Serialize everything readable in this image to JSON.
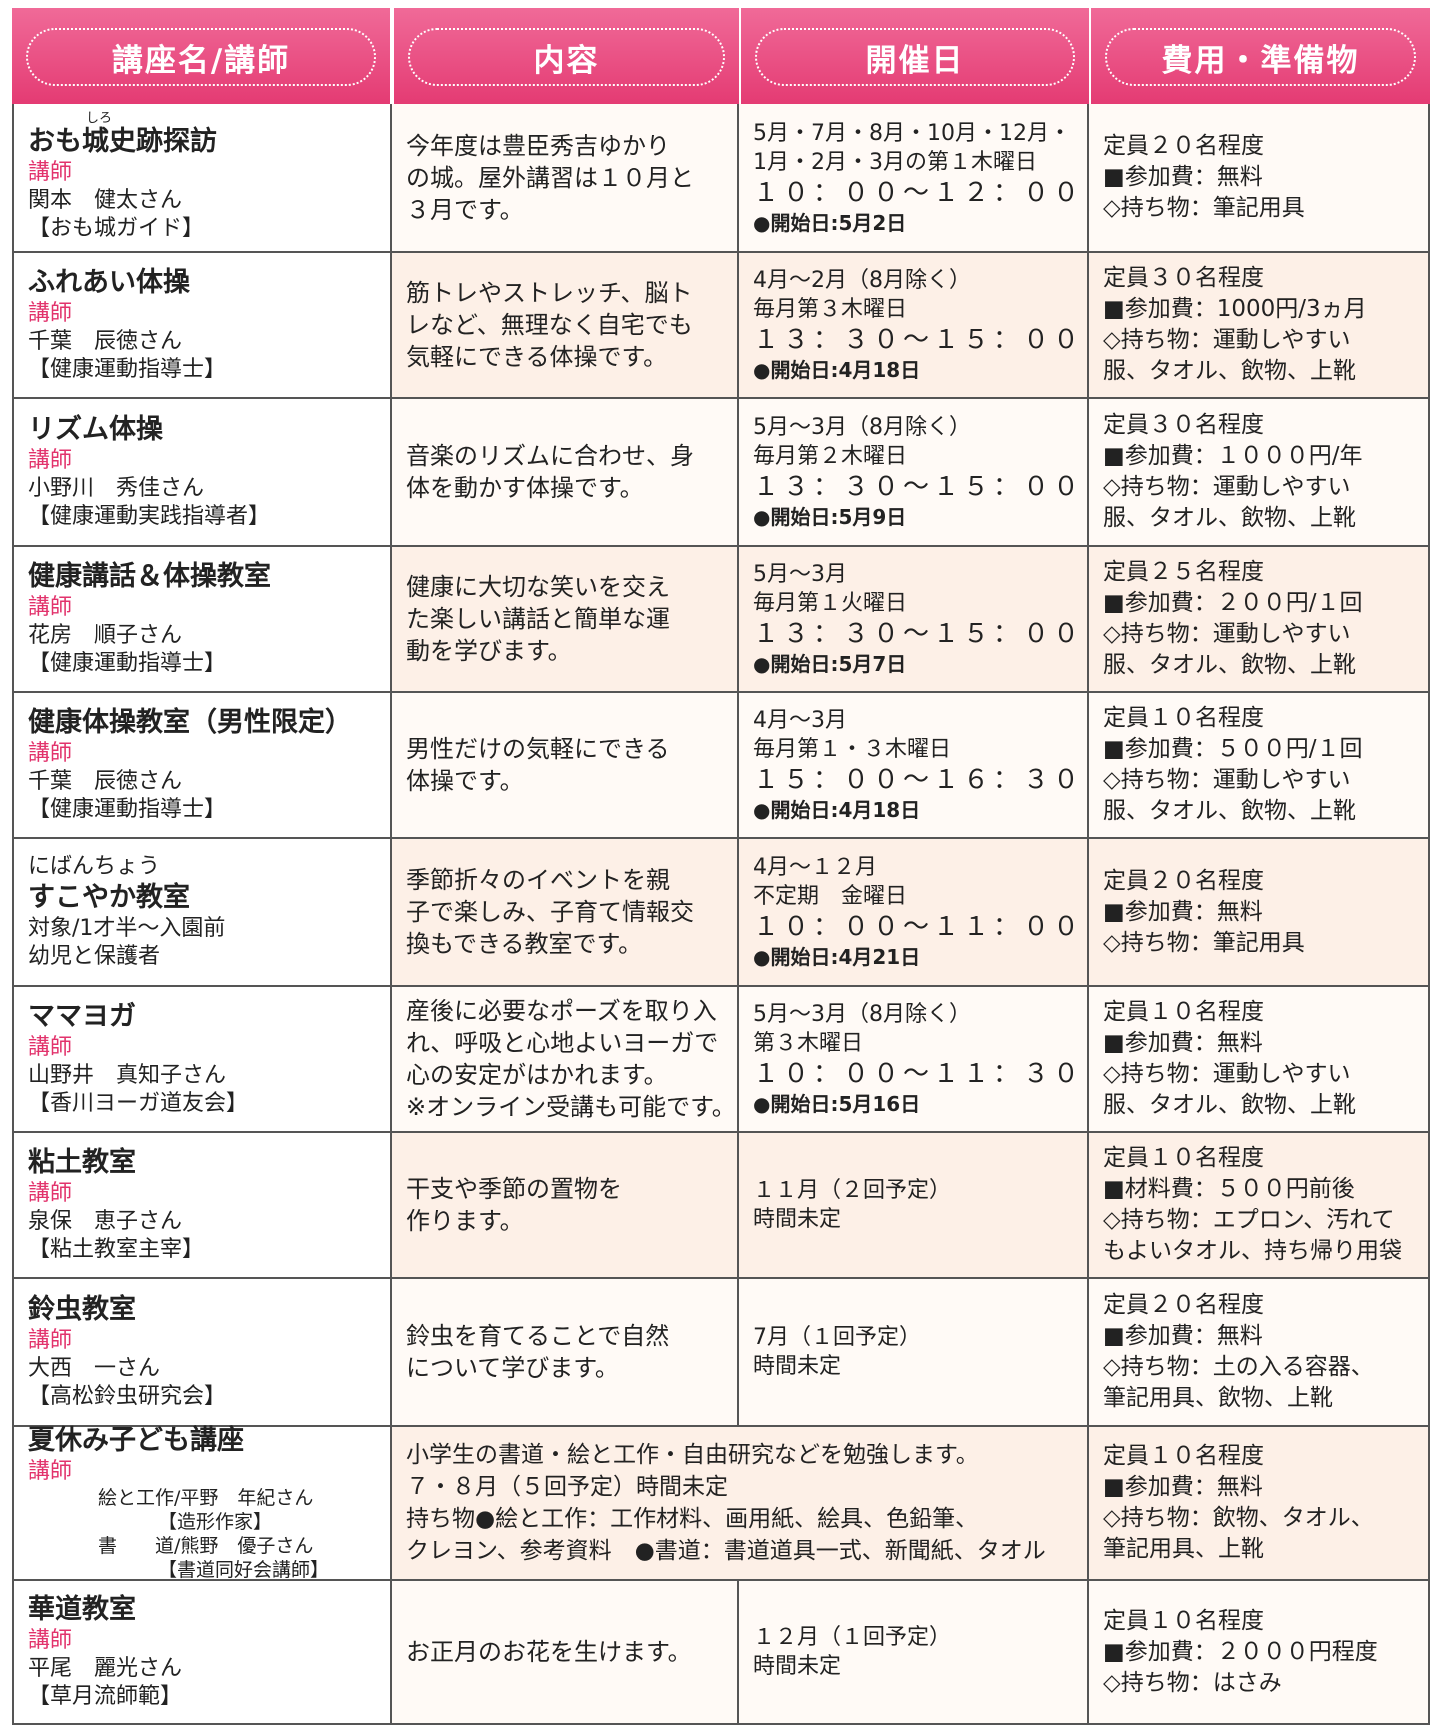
{
  "header": {
    "columns": [
      "講座名/講師",
      "内容",
      "開催日",
      "費用・準備物"
    ]
  },
  "rows": [
    {
      "name": "おも城史跡探訪",
      "name_ruby": "しろ",
      "lecturer_label": "講師",
      "lecturer": "関本　健太さん",
      "affiliation": "【おも城ガイド】",
      "content": [
        "今年度は豊臣秀吉ゆかり",
        "の城。屋外講習は１０月と",
        "３月です。"
      ],
      "schedule": [
        "5月・7月・8月・10月・12月・",
        "1月・2月・3月の第１木曜日",
        "１０：００～１２：００",
        "●開始日:5月2日"
      ],
      "fees": [
        "定員２０名程度",
        "■参加費：無料",
        "◇持ち物：筆記用具"
      ]
    },
    {
      "name": "ふれあい体操",
      "lecturer_label": "講師",
      "lecturer": "千葉　辰徳さん",
      "affiliation": "【健康運動指導士】",
      "content": [
        "筋トレやストレッチ、脳ト",
        "レなど、無理なく自宅でも",
        "気軽にできる体操です。"
      ],
      "schedule": [
        "4月～2月（8月除く）",
        "毎月第３木曜日",
        "１３：３０～１５：００",
        "●開始日:4月18日"
      ],
      "fees": [
        "定員３０名程度",
        "■参加費：1000円/3ヵ月",
        "◇持ち物：運動しやすい",
        "服、タオル、飲物、上靴"
      ]
    },
    {
      "name": "リズム体操",
      "lecturer_label": "講師",
      "lecturer": "小野川　秀佳さん",
      "affiliation": "【健康運動実践指導者】",
      "content": [
        "音楽のリズムに合わせ、身",
        "体を動かす体操です。"
      ],
      "schedule": [
        "5月～3月（8月除く）",
        "毎月第２木曜日",
        "１３：３０～１５：００",
        "●開始日:5月9日"
      ],
      "fees": [
        "定員３０名程度",
        "■参加費：１０００円/年",
        "◇持ち物：運動しやすい",
        "服、タオル、飲物、上靴"
      ]
    },
    {
      "name": "健康講話＆体操教室",
      "lecturer_label": "講師",
      "lecturer": "花房　順子さん",
      "affiliation": "【健康運動指導士】",
      "content": [
        "健康に大切な笑いを交え",
        "た楽しい講話と簡単な運",
        "動を学びます。"
      ],
      "schedule": [
        "5月～3月",
        "毎月第１火曜日",
        "１３：３０～１５：００",
        "●開始日:5月7日"
      ],
      "fees": [
        "定員２５名程度",
        "■参加費：２００円/１回",
        "◇持ち物：運動しやすい",
        "服、タオル、飲物、上靴"
      ]
    },
    {
      "name": "健康体操教室（男性限定）",
      "lecturer_label": "講師",
      "lecturer": "千葉　辰徳さん",
      "affiliation": "【健康運動指導士】",
      "content": [
        "男性だけの気軽にできる",
        "体操です。"
      ],
      "schedule": [
        "4月～3月",
        "毎月第１・３木曜日",
        "１５：００～１６：３０",
        "●開始日:4月18日"
      ],
      "fees": [
        "定員１０名程度",
        "■参加費：５００円/１回",
        "◇持ち物：運動しやすい",
        "服、タオル、飲物、上靴"
      ]
    },
    {
      "name_prefix": "にばんちょう",
      "name": "すこやか教室",
      "target": [
        "対象/1才半～入園前",
        "幼児と保護者"
      ],
      "content": [
        "季節折々のイベントを親",
        "子で楽しみ、子育て情報交",
        "換もできる教室です。"
      ],
      "schedule": [
        "4月～１２月",
        "不定期　金曜日",
        "１０：００～１１：００",
        "●開始日:4月21日"
      ],
      "fees": [
        "定員２０名程度",
        "■参加費：無料",
        "◇持ち物：筆記用具"
      ]
    },
    {
      "name": "ママヨガ",
      "lecturer_label": "講師",
      "lecturer": "山野井　真知子さん",
      "affiliation": "【香川ヨーガ道友会】",
      "content": [
        "産後に必要なポーズを取り入",
        "れ、呼吸と心地よいヨーガで",
        "心の安定がはかれます。",
        "※オンライン受講も可能です。"
      ],
      "schedule": [
        "5月～3月（8月除く）",
        "第３木曜日",
        "１０：００～１１：３０",
        "●開始日:5月16日"
      ],
      "fees": [
        "定員１０名程度",
        "■参加費：無料",
        "◇持ち物：運動しやすい",
        "服、タオル、飲物、上靴"
      ]
    },
    {
      "name": "粘土教室",
      "lecturer_label": "講師",
      "lecturer": "泉保　恵子さん",
      "affiliation": "【粘土教室主宰】",
      "content": [
        "干支や季節の置物を",
        "作ります。"
      ],
      "schedule": [
        "１１月（２回予定）",
        "時間未定"
      ],
      "fees": [
        "定員１０名程度",
        "■材料費：５００円前後",
        "◇持ち物：エプロン、汚れて",
        "もよいタオル、持ち帰り用袋"
      ]
    },
    {
      "name": "鈴虫教室",
      "lecturer_label": "講師",
      "lecturer": "大西　一さん",
      "affiliation": "【高松鈴虫研究会】",
      "content": [
        "鈴虫を育てることで自然",
        "について学びます。"
      ],
      "schedule": [
        "7月（１回予定）",
        "時間未定"
      ],
      "fees": [
        "定員２０名程度",
        "■参加費：無料",
        "◇持ち物：土の入る容器、",
        "筆記用具、飲物、上靴"
      ]
    },
    {
      "name": "夏休み子ども講座",
      "lecturer_label": "講師",
      "lecturers": [
        "絵と工作/平野　年紀さん",
        "【造形作家】",
        "書　　道/熊野　優子さん",
        "【書道同好会講師】"
      ],
      "content": [
        "小学生の書道・絵と工作・自由研究などを勉強します。",
        "７・８月（５回予定）時間未定",
        "持ち物●絵と工作：工作材料、画用紙、絵具、色鉛筆、",
        "クレヨン、参考資料　●書道：書道道具一式、新聞紙、タオル"
      ],
      "fees": [
        "定員１０名程度",
        "■参加費：無料",
        "◇持ち物：飲物、タオル、",
        "筆記用具、上靴"
      ]
    },
    {
      "name": "華道教室",
      "lecturer_label": "講師",
      "lecturer": "平尾　麗光さん",
      "affiliation": "【草月流師範】",
      "content": [
        "お正月のお花を生けます。"
      ],
      "schedule": [
        "１２月（１回予定）",
        "時間未定"
      ],
      "fees": [
        "定員１０名程度",
        "■参加費：２０００円程度",
        "◇持ち物：はさみ"
      ]
    }
  ]
}
